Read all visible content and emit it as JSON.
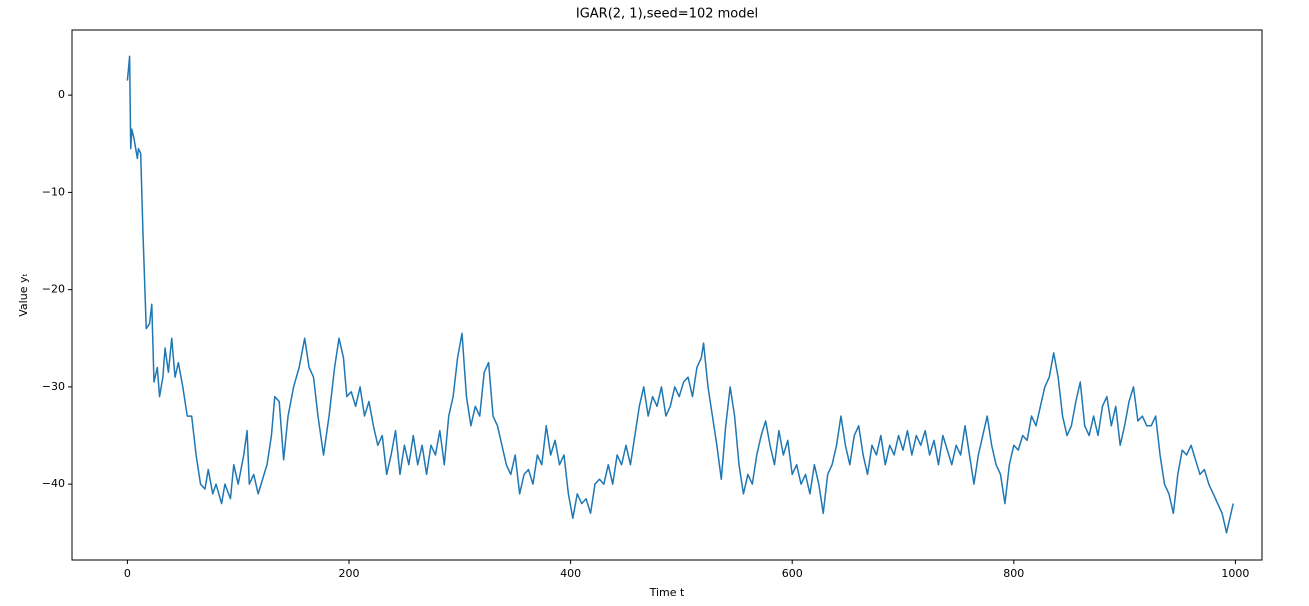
{
  "chart_data": {
    "type": "line",
    "title": "IGAR(2, 1),seed=102 model",
    "x_label": "Time t",
    "y_label": "Value yₜ",
    "color": "#1f77b4",
    "x": [
      0,
      2,
      3,
      4,
      6,
      9,
      10,
      12,
      14,
      17,
      20,
      22,
      24,
      27,
      29,
      32,
      34,
      37,
      40,
      43,
      46,
      50,
      54,
      58,
      62,
      66,
      70,
      73,
      77,
      80,
      85,
      88,
      93,
      96,
      100,
      105,
      108,
      110,
      114,
      118,
      122,
      126,
      130,
      133,
      137,
      141,
      145,
      150,
      155,
      160,
      164,
      168,
      172,
      177,
      182,
      187,
      191,
      195,
      198,
      202,
      206,
      210,
      214,
      218,
      222,
      226,
      230,
      234,
      238,
      242,
      246,
      250,
      254,
      258,
      262,
      266,
      270,
      274,
      278,
      282,
      286,
      290,
      294,
      298,
      302,
      306,
      310,
      314,
      318,
      322,
      326,
      330,
      334,
      338,
      342,
      346,
      350,
      354,
      358,
      362,
      366,
      370,
      374,
      378,
      382,
      386,
      390,
      394,
      398,
      402,
      406,
      410,
      414,
      418,
      422,
      426,
      430,
      434,
      438,
      442,
      446,
      450,
      454,
      458,
      462,
      466,
      470,
      474,
      478,
      482,
      486,
      490,
      494,
      498,
      502,
      506,
      510,
      514,
      518,
      520,
      524,
      528,
      532,
      536,
      540,
      544,
      548,
      552,
      556,
      560,
      564,
      568,
      572,
      576,
      580,
      584,
      588,
      592,
      596,
      600,
      604,
      608,
      612,
      616,
      620,
      624,
      628,
      632,
      636,
      640,
      644,
      648,
      652,
      656,
      660,
      664,
      668,
      672,
      676,
      680,
      684,
      688,
      692,
      696,
      700,
      704,
      708,
      712,
      716,
      720,
      724,
      728,
      732,
      736,
      740,
      744,
      748,
      752,
      756,
      760,
      764,
      768,
      772,
      776,
      780,
      784,
      788,
      792,
      796,
      800,
      804,
      808,
      812,
      816,
      820,
      824,
      828,
      832,
      836,
      840,
      844,
      848,
      852,
      856,
      860,
      864,
      868,
      872,
      876,
      880,
      884,
      888,
      892,
      896,
      900,
      904,
      908,
      912,
      916,
      920,
      924,
      928,
      932,
      936,
      940,
      944,
      948,
      952,
      956,
      960,
      964,
      968,
      972,
      976,
      980,
      984,
      988,
      992,
      995,
      998
    ],
    "values": [
      1.5,
      4,
      -5.5,
      -3.5,
      -4.5,
      -6.5,
      -5.5,
      -6,
      -14,
      -24,
      -23.5,
      -21.5,
      -29.5,
      -28,
      -31,
      -29,
      -26,
      -28.5,
      -25,
      -29,
      -27.5,
      -30,
      -33,
      -33,
      -37,
      -40,
      -40.5,
      -38.5,
      -41,
      -40,
      -42,
      -40,
      -41.5,
      -38,
      -40,
      -37,
      -34.5,
      -40,
      -39,
      -41,
      -39.5,
      -38,
      -35,
      -31,
      -31.5,
      -37.5,
      -33,
      -30,
      -28,
      -25,
      -28,
      -29,
      -33,
      -37,
      -33,
      -28,
      -25,
      -27,
      -31,
      -30.5,
      -32,
      -30,
      -33,
      -31.5,
      -34,
      -36,
      -35,
      -39,
      -37,
      -34.5,
      -39,
      -36,
      -38,
      -35,
      -38,
      -36,
      -39,
      -36,
      -37,
      -34.5,
      -38,
      -33,
      -31,
      -27,
      -24.5,
      -31,
      -34,
      -32,
      -33,
      -28.5,
      -27.5,
      -33,
      -34,
      -36,
      -38,
      -39,
      -37,
      -41,
      -39,
      -38.5,
      -40,
      -37,
      -38,
      -34,
      -37,
      -35.5,
      -38,
      -37,
      -41,
      -43.5,
      -41,
      -42,
      -41.5,
      -43,
      -40,
      -39.5,
      -40,
      -38,
      -40,
      -37,
      -38,
      -36,
      -38,
      -35,
      -32,
      -30,
      -33,
      -31,
      -32,
      -30,
      -33,
      -32,
      -30,
      -31,
      -29.5,
      -29,
      -31,
      -28,
      -27,
      -25.5,
      -30,
      -33,
      -36,
      -39.5,
      -34,
      -30,
      -33,
      -38,
      -41,
      -39,
      -40,
      -37,
      -35,
      -33.5,
      -36,
      -38,
      -34.5,
      -37,
      -35.5,
      -39,
      -38,
      -40,
      -39,
      -41,
      -38,
      -40,
      -43,
      -39,
      -38,
      -36,
      -33,
      -36,
      -38,
      -35,
      -34,
      -37,
      -39,
      -36,
      -37,
      -35,
      -38,
      -36,
      -37,
      -35,
      -36.5,
      -34.5,
      -37,
      -35,
      -36,
      -34.5,
      -37,
      -35.5,
      -38,
      -35,
      -36.5,
      -38,
      -36,
      -37,
      -34,
      -37,
      -40,
      -37,
      -35,
      -33,
      -36,
      -38,
      -39,
      -42,
      -38,
      -36,
      -36.5,
      -35,
      -35.5,
      -33,
      -34,
      -32,
      -30,
      -29,
      -26.5,
      -29,
      -33,
      -35,
      -34,
      -31.5,
      -29.5,
      -34,
      -35,
      -33,
      -35,
      -32,
      -31,
      -34,
      -32,
      -36,
      -34,
      -31.5,
      -30,
      -33.5,
      -33,
      -34,
      -34,
      -33,
      -37,
      -40,
      -41,
      -43,
      -39,
      -36.5,
      -37,
      -36,
      -37.5,
      -39,
      -38.5,
      -40,
      -41,
      -42,
      -43,
      -45,
      -43.5,
      -42
    ],
    "xlim": [
      -50,
      1024
    ],
    "ylim": [
      -47.8,
      6.7
    ],
    "xticks": [
      0,
      200,
      400,
      600,
      800,
      1000
    ],
    "yticks": [
      {
        "value": 0,
        "label": "0"
      },
      {
        "value": -10,
        "label": "−10"
      },
      {
        "value": -20,
        "label": "−20"
      },
      {
        "value": -30,
        "label": "−30"
      },
      {
        "value": -40,
        "label": "−40"
      }
    ]
  }
}
